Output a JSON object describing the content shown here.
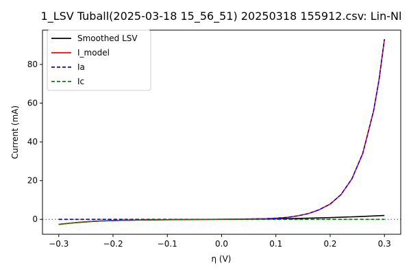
{
  "chart_data": {
    "type": "line",
    "title": "1_LSV Tuball(2025-03-18 15_56_51) 20250318 155912.csv: Lin-Nl",
    "xlabel": "η (V)",
    "ylabel": "Current (mA)",
    "xlim": [
      -0.33,
      0.33
    ],
    "ylim": [
      -7.7,
      97.7
    ],
    "xticks": [
      -0.3,
      -0.2,
      -0.1,
      0.0,
      0.1,
      0.2,
      0.3
    ],
    "xtick_labels": [
      "−0.3",
      "−0.2",
      "−0.1",
      "0.0",
      "0.1",
      "0.2",
      "0.3"
    ],
    "yticks": [
      0,
      20,
      40,
      60,
      80
    ],
    "ytick_labels": [
      "0",
      "20",
      "40",
      "60",
      "80"
    ],
    "zero_line": true,
    "grid": false,
    "legend_position": "top-left",
    "series": [
      {
        "name": "Smoothed LSV",
        "color": "#000000",
        "style": "solid",
        "x": [
          -0.3,
          -0.28,
          -0.26,
          -0.24,
          -0.22,
          -0.2,
          -0.15,
          -0.1,
          -0.05,
          0.0,
          0.05,
          0.1,
          0.15,
          0.2,
          0.25,
          0.3
        ],
        "y": [
          -2.6,
          -2.0,
          -1.5,
          -1.1,
          -0.8,
          -0.6,
          -0.35,
          -0.2,
          -0.1,
          0.0,
          0.1,
          0.3,
          0.55,
          0.9,
          1.4,
          2.0
        ]
      },
      {
        "name": "I_model",
        "color": "#ff0000",
        "style": "solid",
        "x": [
          -0.3,
          -0.28,
          -0.26,
          -0.24,
          -0.22,
          -0.2,
          -0.15,
          -0.1,
          -0.05,
          0.0,
          0.05,
          0.08,
          0.1,
          0.12,
          0.14,
          0.16,
          0.18,
          0.2,
          0.22,
          0.24,
          0.26,
          0.28,
          0.29,
          0.3
        ],
        "y": [
          -2.6,
          -2.0,
          -1.5,
          -1.1,
          -0.8,
          -0.6,
          -0.3,
          -0.15,
          -0.05,
          0.0,
          0.2,
          0.35,
          0.6,
          1.0,
          1.8,
          3.0,
          5.0,
          7.9,
          12.8,
          20.9,
          34.0,
          56.0,
          72.0,
          93.0
        ]
      },
      {
        "name": "Ia",
        "color": "#0000ff",
        "style": "dashed",
        "x": [
          -0.3,
          -0.2,
          -0.1,
          0.0,
          0.05,
          0.08,
          0.1,
          0.12,
          0.14,
          0.16,
          0.18,
          0.2,
          0.22,
          0.24,
          0.26,
          0.28,
          0.29,
          0.3
        ],
        "y": [
          0.0,
          0.0,
          0.0,
          0.0,
          0.2,
          0.35,
          0.6,
          1.0,
          1.8,
          3.0,
          5.0,
          7.9,
          12.8,
          20.9,
          34.0,
          56.0,
          72.0,
          93.0
        ]
      },
      {
        "name": "Ic",
        "color": "#008000",
        "style": "dashed",
        "x": [
          -0.3,
          -0.28,
          -0.26,
          -0.24,
          -0.22,
          -0.2,
          -0.15,
          -0.1,
          -0.05,
          0.0,
          0.1,
          0.2,
          0.3
        ],
        "y": [
          -2.6,
          -2.0,
          -1.5,
          -1.1,
          -0.8,
          -0.6,
          -0.3,
          -0.15,
          -0.05,
          0.0,
          0.0,
          0.0,
          0.0
        ]
      }
    ]
  }
}
